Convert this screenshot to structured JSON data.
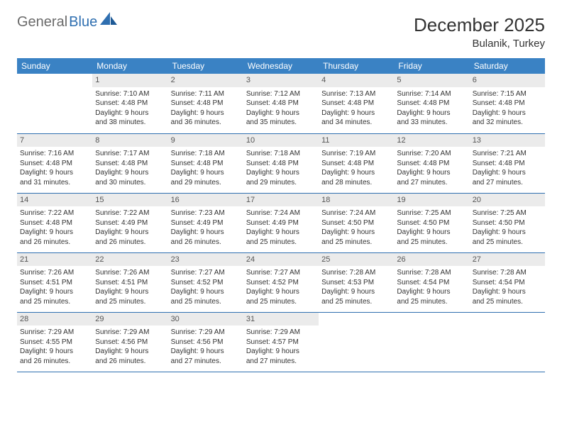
{
  "brand": {
    "part1": "General",
    "part2": "Blue"
  },
  "title": "December 2025",
  "location": "Bulanik, Turkey",
  "colors": {
    "header_bg": "#3a82c4",
    "header_text": "#ffffff",
    "daynum_bg": "#ebebeb",
    "row_border": "#2f6fb0",
    "text": "#333333",
    "logo_gray": "#6a6a6a",
    "logo_blue": "#2f6fb0"
  },
  "fonts": {
    "title_size_pt": 20,
    "location_size_pt": 11,
    "header_size_pt": 9,
    "cell_size_pt": 8
  },
  "day_headers": [
    "Sunday",
    "Monday",
    "Tuesday",
    "Wednesday",
    "Thursday",
    "Friday",
    "Saturday"
  ],
  "weeks": [
    [
      null,
      {
        "n": "1",
        "sr": "7:10 AM",
        "ss": "4:48 PM",
        "dl": "9 hours and 38 minutes."
      },
      {
        "n": "2",
        "sr": "7:11 AM",
        "ss": "4:48 PM",
        "dl": "9 hours and 36 minutes."
      },
      {
        "n": "3",
        "sr": "7:12 AM",
        "ss": "4:48 PM",
        "dl": "9 hours and 35 minutes."
      },
      {
        "n": "4",
        "sr": "7:13 AM",
        "ss": "4:48 PM",
        "dl": "9 hours and 34 minutes."
      },
      {
        "n": "5",
        "sr": "7:14 AM",
        "ss": "4:48 PM",
        "dl": "9 hours and 33 minutes."
      },
      {
        "n": "6",
        "sr": "7:15 AM",
        "ss": "4:48 PM",
        "dl": "9 hours and 32 minutes."
      }
    ],
    [
      {
        "n": "7",
        "sr": "7:16 AM",
        "ss": "4:48 PM",
        "dl": "9 hours and 31 minutes."
      },
      {
        "n": "8",
        "sr": "7:17 AM",
        "ss": "4:48 PM",
        "dl": "9 hours and 30 minutes."
      },
      {
        "n": "9",
        "sr": "7:18 AM",
        "ss": "4:48 PM",
        "dl": "9 hours and 29 minutes."
      },
      {
        "n": "10",
        "sr": "7:18 AM",
        "ss": "4:48 PM",
        "dl": "9 hours and 29 minutes."
      },
      {
        "n": "11",
        "sr": "7:19 AM",
        "ss": "4:48 PM",
        "dl": "9 hours and 28 minutes."
      },
      {
        "n": "12",
        "sr": "7:20 AM",
        "ss": "4:48 PM",
        "dl": "9 hours and 27 minutes."
      },
      {
        "n": "13",
        "sr": "7:21 AM",
        "ss": "4:48 PM",
        "dl": "9 hours and 27 minutes."
      }
    ],
    [
      {
        "n": "14",
        "sr": "7:22 AM",
        "ss": "4:48 PM",
        "dl": "9 hours and 26 minutes."
      },
      {
        "n": "15",
        "sr": "7:22 AM",
        "ss": "4:49 PM",
        "dl": "9 hours and 26 minutes."
      },
      {
        "n": "16",
        "sr": "7:23 AM",
        "ss": "4:49 PM",
        "dl": "9 hours and 26 minutes."
      },
      {
        "n": "17",
        "sr": "7:24 AM",
        "ss": "4:49 PM",
        "dl": "9 hours and 25 minutes."
      },
      {
        "n": "18",
        "sr": "7:24 AM",
        "ss": "4:50 PM",
        "dl": "9 hours and 25 minutes."
      },
      {
        "n": "19",
        "sr": "7:25 AM",
        "ss": "4:50 PM",
        "dl": "9 hours and 25 minutes."
      },
      {
        "n": "20",
        "sr": "7:25 AM",
        "ss": "4:50 PM",
        "dl": "9 hours and 25 minutes."
      }
    ],
    [
      {
        "n": "21",
        "sr": "7:26 AM",
        "ss": "4:51 PM",
        "dl": "9 hours and 25 minutes."
      },
      {
        "n": "22",
        "sr": "7:26 AM",
        "ss": "4:51 PM",
        "dl": "9 hours and 25 minutes."
      },
      {
        "n": "23",
        "sr": "7:27 AM",
        "ss": "4:52 PM",
        "dl": "9 hours and 25 minutes."
      },
      {
        "n": "24",
        "sr": "7:27 AM",
        "ss": "4:52 PM",
        "dl": "9 hours and 25 minutes."
      },
      {
        "n": "25",
        "sr": "7:28 AM",
        "ss": "4:53 PM",
        "dl": "9 hours and 25 minutes."
      },
      {
        "n": "26",
        "sr": "7:28 AM",
        "ss": "4:54 PM",
        "dl": "9 hours and 25 minutes."
      },
      {
        "n": "27",
        "sr": "7:28 AM",
        "ss": "4:54 PM",
        "dl": "9 hours and 25 minutes."
      }
    ],
    [
      {
        "n": "28",
        "sr": "7:29 AM",
        "ss": "4:55 PM",
        "dl": "9 hours and 26 minutes."
      },
      {
        "n": "29",
        "sr": "7:29 AM",
        "ss": "4:56 PM",
        "dl": "9 hours and 26 minutes."
      },
      {
        "n": "30",
        "sr": "7:29 AM",
        "ss": "4:56 PM",
        "dl": "9 hours and 27 minutes."
      },
      {
        "n": "31",
        "sr": "7:29 AM",
        "ss": "4:57 PM",
        "dl": "9 hours and 27 minutes."
      },
      null,
      null,
      null
    ]
  ],
  "labels": {
    "sunrise": "Sunrise:",
    "sunset": "Sunset:",
    "daylight": "Daylight:"
  }
}
